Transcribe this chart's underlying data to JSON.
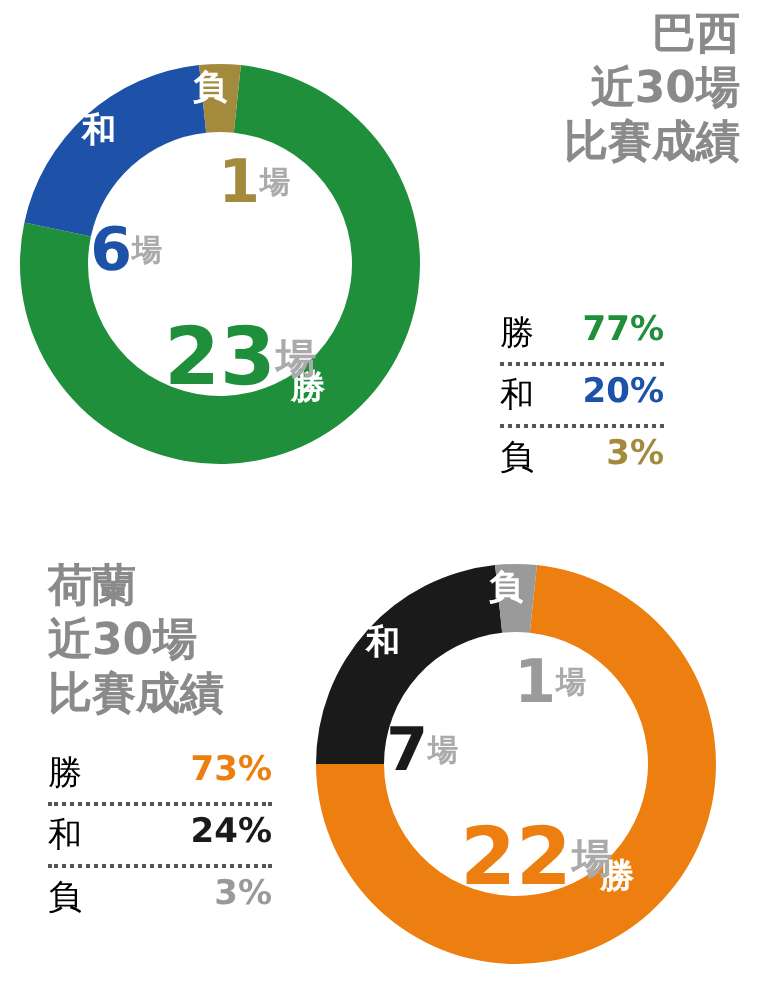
{
  "chart_data": [
    {
      "type": "donut",
      "title": "巴西",
      "subtitle": "近30場比賽成績",
      "categories": [
        "勝",
        "和",
        "負"
      ],
      "values": [
        23,
        6,
        1
      ],
      "colors": [
        "#1f8f3c",
        "#1d52a8",
        "#a38a3c"
      ],
      "value_labels": [
        "23場",
        "6場",
        "1場"
      ],
      "annotations": [
        "勝 77%",
        "和 20%",
        "負 3%"
      ]
    },
    {
      "type": "donut",
      "title": "荷蘭",
      "subtitle": "近30場比賽成績",
      "categories": [
        "勝",
        "和",
        "負"
      ],
      "values": [
        22,
        7,
        1
      ],
      "colors": [
        "#ec7f10",
        "#1a1a1a",
        "#9a9a9a"
      ],
      "value_labels": [
        "22場",
        "7場",
        "1場"
      ],
      "annotations": [
        "勝 73%",
        "和 24%",
        "負 3%"
      ]
    }
  ]
}
